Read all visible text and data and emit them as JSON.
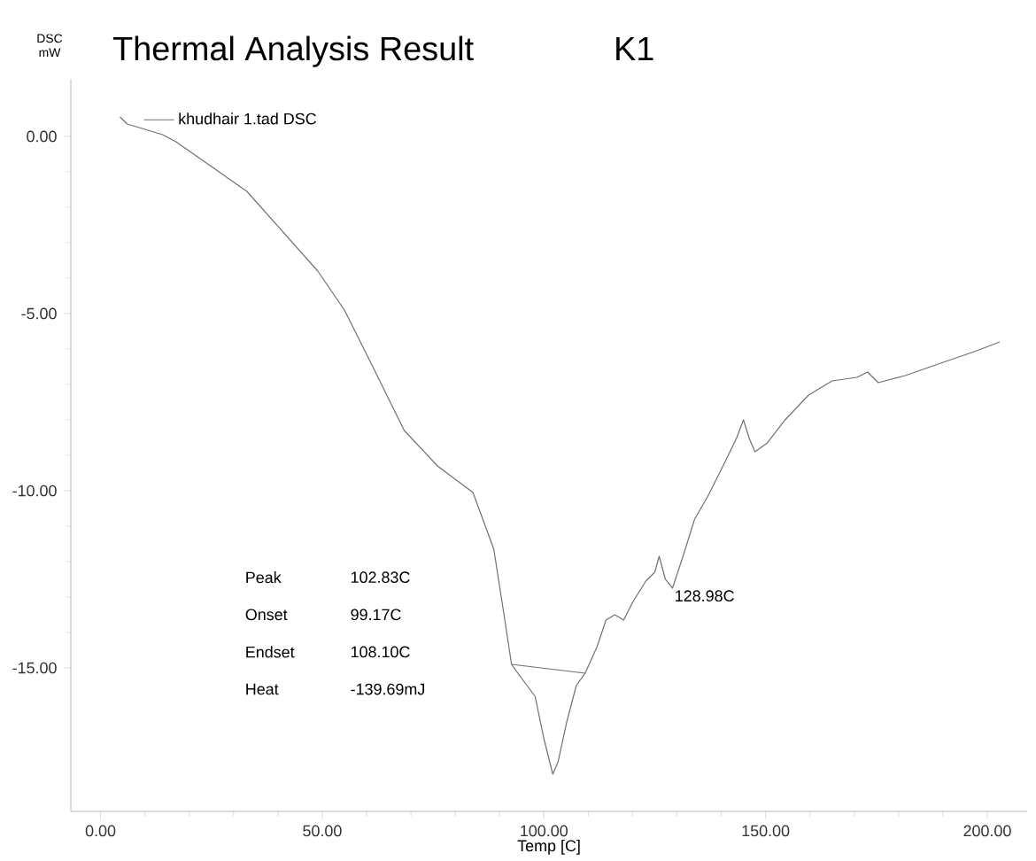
{
  "chart_data": {
    "type": "line",
    "title": "Thermal Analysis Result",
    "subtitle": "K1",
    "xlabel": "Temp [C]",
    "ylabel": "DSC mW",
    "xlim": [
      -6.7,
      209
    ],
    "ylim": [
      -19.05,
      1.6
    ],
    "xticks": [
      {
        "value": 0,
        "label": "0.00"
      },
      {
        "value": 50,
        "label": "50.00"
      },
      {
        "value": 100,
        "label": "100.00"
      },
      {
        "value": 150,
        "label": "150.00"
      },
      {
        "value": 200,
        "label": "200.00"
      }
    ],
    "yticks": [
      {
        "value": 0,
        "label": "0.00"
      },
      {
        "value": -5,
        "label": "-5.00"
      },
      {
        "value": -10,
        "label": "-10.00"
      },
      {
        "value": -15,
        "label": "-15.00"
      }
    ],
    "legend": "top left",
    "grid": false,
    "marker": "none",
    "line_style": "solid",
    "series": [
      {
        "name": "khudhair 1.tad  DSC",
        "color": "#707070",
        "x": [
          4.4,
          6,
          14,
          17,
          33,
          49,
          55,
          61,
          68.5,
          76,
          84,
          88.7,
          91,
          92.7,
          95,
          98,
          100,
          102,
          103.2,
          105.2,
          107.3,
          109.3,
          112,
          114,
          116,
          118,
          120,
          123,
          125,
          126,
          127.4,
          129,
          131.5,
          134,
          137,
          141,
          143.5,
          145,
          146.4,
          147.6,
          150.4,
          154.4,
          159.7,
          165,
          170.6,
          173,
          175.4,
          181.5,
          189.5,
          197.6,
          202.8
        ],
        "values": [
          0.55,
          0.35,
          0.05,
          -0.15,
          -1.55,
          -3.8,
          -4.9,
          -6.4,
          -8.3,
          -9.3,
          -10.05,
          -11.65,
          -13.5,
          -14.9,
          -15.3,
          -15.8,
          -17,
          -18,
          -17.65,
          -16.5,
          -15.5,
          -15.15,
          -14.4,
          -13.65,
          -13.5,
          -13.65,
          -13.15,
          -12.55,
          -12.3,
          -11.85,
          -12.5,
          -12.75,
          -11.8,
          -10.8,
          -10.15,
          -9.15,
          -8.5,
          -8.0,
          -8.55,
          -8.9,
          -8.65,
          -8.0,
          -7.3,
          -6.9,
          -6.8,
          -6.65,
          -6.95,
          -6.75,
          -6.4,
          -6.05,
          -5.8
        ]
      },
      {
        "color": "#707070",
        "x": [
          92.7,
          109.3
        ],
        "values": [
          -14.9,
          -15.15
        ]
      }
    ],
    "annotations": [
      "Peak",
      "102.83C",
      "Onset",
      "99.17C",
      "Endset",
      "108.10C",
      "Heat",
      "-139.69mJ",
      {
        "text": "128.98C",
        "x": 128.98,
        "y": -12.75
      }
    ]
  }
}
